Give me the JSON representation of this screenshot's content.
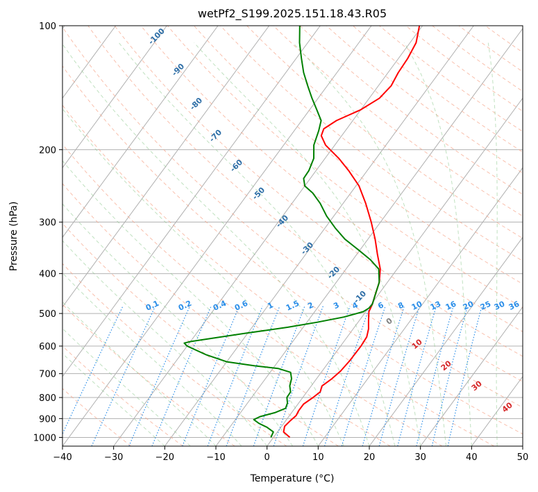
{
  "chart_data": {
    "type": "line",
    "title": "wetPf2_S199.2025.151.18.43.R05",
    "xlabel": "Temperature (°C)",
    "ylabel": "Pressure (hPa)",
    "xlim": [
      -40,
      50
    ],
    "ylim": [
      1050,
      100
    ],
    "y_scale": "log",
    "skew": "skew-T",
    "grid": true,
    "x_ticks": [
      -40,
      -30,
      -20,
      -10,
      0,
      10,
      20,
      30,
      40,
      50
    ],
    "y_ticks": [
      1000,
      900,
      800,
      700,
      600,
      500,
      400,
      300,
      200,
      100
    ],
    "series": [
      {
        "color": "#ff0000",
        "points": [
          [
            1000,
            3.2
          ],
          [
            970,
            1.2
          ],
          [
            940,
            0.6
          ],
          [
            910,
            0.9
          ],
          [
            885,
            1.3
          ],
          [
            860,
            1.1
          ],
          [
            830,
            1.1
          ],
          [
            800,
            2.0
          ],
          [
            775,
            2.6
          ],
          [
            750,
            2.1
          ],
          [
            720,
            3.0
          ],
          [
            690,
            3.6
          ],
          [
            650,
            3.9
          ],
          [
            600,
            4.0
          ],
          [
            570,
            3.8
          ],
          [
            545,
            3.0
          ],
          [
            520,
            1.8
          ],
          [
            495,
            0.6
          ],
          [
            475,
            0.2
          ],
          [
            450,
            -0.6
          ],
          [
            420,
            -1.6
          ],
          [
            390,
            -3.3
          ],
          [
            360,
            -5.9
          ],
          [
            330,
            -8.6
          ],
          [
            300,
            -11.8
          ],
          [
            270,
            -15.6
          ],
          [
            245,
            -19.4
          ],
          [
            225,
            -23.6
          ],
          [
            210,
            -27.3
          ],
          [
            195,
            -31.8
          ],
          [
            185,
            -34.0
          ],
          [
            178,
            -34.5
          ],
          [
            170,
            -33.2
          ],
          [
            160,
            -30.0
          ],
          [
            150,
            -28.0
          ],
          [
            140,
            -27.5
          ],
          [
            130,
            -28.0
          ],
          [
            120,
            -28.2
          ],
          [
            110,
            -28.8
          ],
          [
            100,
            -30.6
          ]
        ]
      },
      {
        "color": "#008000",
        "points": [
          [
            1000,
            -0.5
          ],
          [
            970,
            -0.8
          ],
          [
            945,
            -2.7
          ],
          [
            925,
            -4.8
          ],
          [
            905,
            -6.4
          ],
          [
            890,
            -5.6
          ],
          [
            870,
            -3.2
          ],
          [
            850,
            -1.8
          ],
          [
            825,
            -2.2
          ],
          [
            800,
            -3.1
          ],
          [
            775,
            -3.2
          ],
          [
            750,
            -4.2
          ],
          [
            720,
            -4.9
          ],
          [
            695,
            -6.0
          ],
          [
            680,
            -9.0
          ],
          [
            670,
            -14.0
          ],
          [
            655,
            -20.0
          ],
          [
            630,
            -25.0
          ],
          [
            600,
            -30.0
          ],
          [
            590,
            -31.0
          ],
          [
            585,
            -30.0
          ],
          [
            575,
            -26.5
          ],
          [
            560,
            -21.0
          ],
          [
            540,
            -13.0
          ],
          [
            525,
            -8.0
          ],
          [
            510,
            -3.5
          ],
          [
            495,
            -0.5
          ],
          [
            485,
            0.1
          ],
          [
            475,
            0.2
          ],
          [
            450,
            -0.6
          ],
          [
            420,
            -1.6
          ],
          [
            390,
            -3.6
          ],
          [
            370,
            -6.6
          ],
          [
            350,
            -10.4
          ],
          [
            330,
            -14.5
          ],
          [
            310,
            -18.0
          ],
          [
            290,
            -21.4
          ],
          [
            270,
            -24.5
          ],
          [
            255,
            -27.4
          ],
          [
            245,
            -30.0
          ],
          [
            235,
            -31.3
          ],
          [
            225,
            -31.4
          ],
          [
            210,
            -32.2
          ],
          [
            195,
            -34.1
          ],
          [
            180,
            -35.2
          ],
          [
            170,
            -36.2
          ],
          [
            160,
            -38.6
          ],
          [
            150,
            -41.2
          ],
          [
            140,
            -43.8
          ],
          [
            130,
            -46.5
          ],
          [
            120,
            -49.0
          ],
          [
            110,
            -51.6
          ],
          [
            100,
            -54.0
          ]
        ]
      }
    ],
    "dry_adiabat_labels": [
      "-100",
      "-90",
      "-80",
      "-70",
      "-60",
      "-50",
      "-40",
      "-30",
      "-20",
      "-10"
    ],
    "mixing_ratio_labels": [
      "0.1",
      "0.2",
      "0.4",
      "0.6",
      "1",
      "1.5",
      "2",
      "3",
      "4",
      "6",
      "8",
      "10",
      "13",
      "16",
      "20",
      "25",
      "30",
      "36"
    ],
    "moist_adiabat_labels": [
      "0",
      "10",
      "20",
      "30",
      "40"
    ]
  }
}
